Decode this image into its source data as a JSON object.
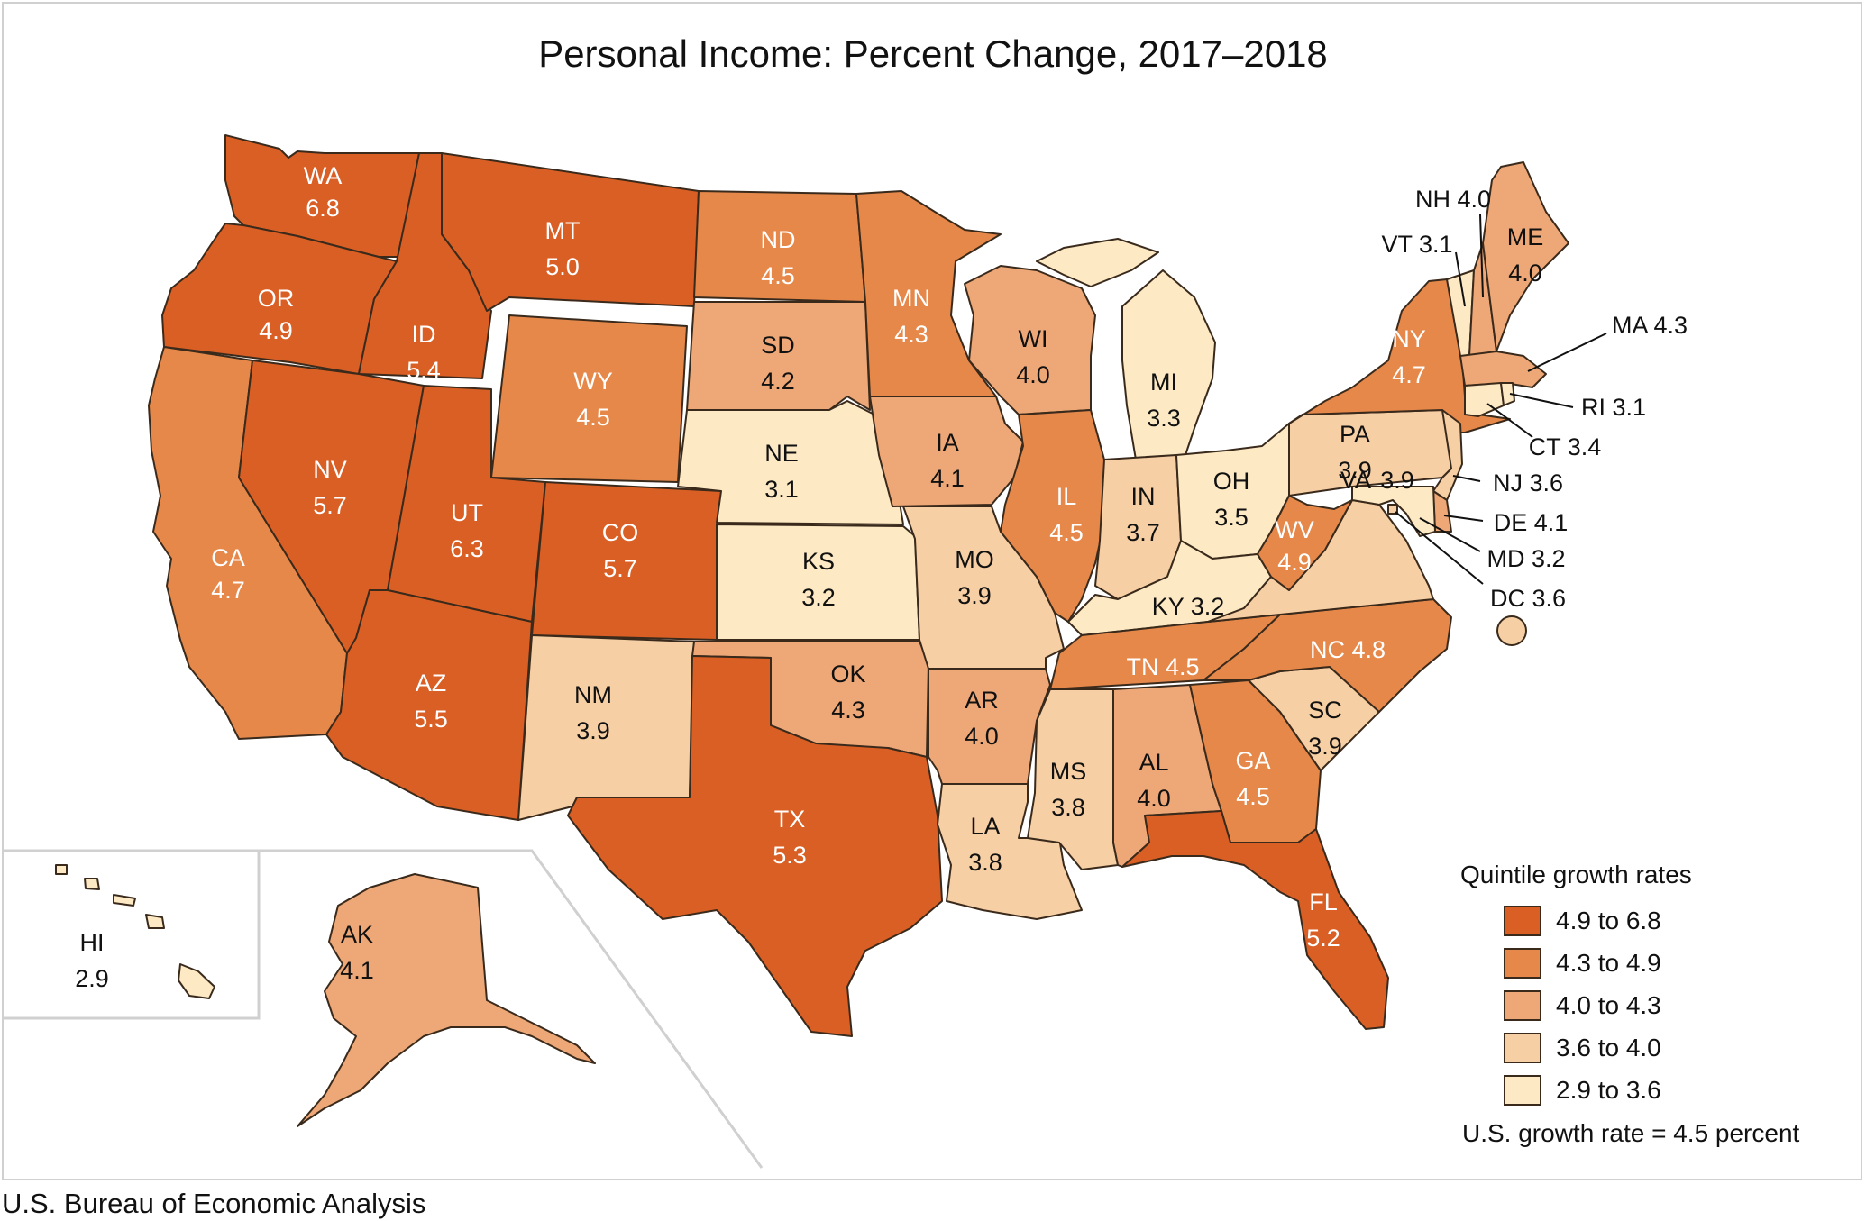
{
  "title": "Personal Income: Percent Change, 2017–2018",
  "source": "U.S. Bureau of Economic Analysis",
  "colors": {
    "q5": "#d95f25",
    "q4": "#e5884a",
    "q3": "#eea877",
    "q2": "#f7cfa4",
    "q1": "#fde9c4",
    "border": "#3a2a1c"
  },
  "legend": {
    "title": "Quintile growth rates",
    "items": [
      {
        "label": "4.9 to 6.8",
        "color": "#d95f25"
      },
      {
        "label": "4.3 to 4.9",
        "color": "#e5884a"
      },
      {
        "label": "4.0 to 4.3",
        "color": "#eea877"
      },
      {
        "label": "3.6 to 4.0",
        "color": "#f7cfa4"
      },
      {
        "label": "2.9 to 3.6",
        "color": "#fde9c4"
      }
    ],
    "us_rate": "U.S. growth rate = 4.5 percent"
  },
  "states": {
    "WA": {
      "abbr": "WA",
      "value": "6.8"
    },
    "OR": {
      "abbr": "OR",
      "value": "4.9"
    },
    "CA": {
      "abbr": "CA",
      "value": "4.7"
    },
    "ID": {
      "abbr": "ID",
      "value": "5.4"
    },
    "NV": {
      "abbr": "NV",
      "value": "5.7"
    },
    "MT": {
      "abbr": "MT",
      "value": "5.0"
    },
    "WY": {
      "abbr": "WY",
      "value": "4.5"
    },
    "UT": {
      "abbr": "UT",
      "value": "6.3"
    },
    "CO": {
      "abbr": "CO",
      "value": "5.7"
    },
    "AZ": {
      "abbr": "AZ",
      "value": "5.5"
    },
    "NM": {
      "abbr": "NM",
      "value": "3.9"
    },
    "ND": {
      "abbr": "ND",
      "value": "4.5"
    },
    "SD": {
      "abbr": "SD",
      "value": "4.2"
    },
    "NE": {
      "abbr": "NE",
      "value": "3.1"
    },
    "KS": {
      "abbr": "KS",
      "value": "3.2"
    },
    "OK": {
      "abbr": "OK",
      "value": "4.3"
    },
    "TX": {
      "abbr": "TX",
      "value": "5.3"
    },
    "MN": {
      "abbr": "MN",
      "value": "4.3"
    },
    "IA": {
      "abbr": "IA",
      "value": "4.1"
    },
    "MO": {
      "abbr": "MO",
      "value": "3.9"
    },
    "AR": {
      "abbr": "AR",
      "value": "4.0"
    },
    "LA": {
      "abbr": "LA",
      "value": "3.8"
    },
    "WI": {
      "abbr": "WI",
      "value": "4.0"
    },
    "IL": {
      "abbr": "IL",
      "value": "4.5"
    },
    "MI": {
      "abbr": "MI",
      "value": "3.3"
    },
    "IN": {
      "abbr": "IN",
      "value": "3.7"
    },
    "OH": {
      "abbr": "OH",
      "value": "3.5"
    },
    "KY": {
      "abbr": "KY",
      "value": "3.2"
    },
    "TN": {
      "abbr": "TN",
      "value": "4.5"
    },
    "MS": {
      "abbr": "MS",
      "value": "3.8"
    },
    "AL": {
      "abbr": "AL",
      "value": "4.0"
    },
    "GA": {
      "abbr": "GA",
      "value": "4.5"
    },
    "FL": {
      "abbr": "FL",
      "value": "5.2"
    },
    "SC": {
      "abbr": "SC",
      "value": "3.9"
    },
    "NC": {
      "abbr": "NC",
      "value": "4.8"
    },
    "VA": {
      "abbr": "VA",
      "value": "3.9"
    },
    "WV": {
      "abbr": "WV",
      "value": "4.9"
    },
    "PA": {
      "abbr": "PA",
      "value": "3.9"
    },
    "NY": {
      "abbr": "NY",
      "value": "4.7"
    },
    "ME": {
      "abbr": "ME",
      "value": "4.0"
    },
    "NH": {
      "abbr": "NH",
      "value": "4.0"
    },
    "VT": {
      "abbr": "VT",
      "value": "3.1"
    },
    "MA": {
      "abbr": "MA",
      "value": "4.3"
    },
    "RI": {
      "abbr": "RI",
      "value": "3.1"
    },
    "CT": {
      "abbr": "CT",
      "value": "3.4"
    },
    "NJ": {
      "abbr": "NJ",
      "value": "3.6"
    },
    "DE": {
      "abbr": "DE",
      "value": "4.1"
    },
    "MD": {
      "abbr": "MD",
      "value": "3.2"
    },
    "DC": {
      "abbr": "DC",
      "value": "3.6"
    },
    "AK": {
      "abbr": "AK",
      "value": "4.1"
    },
    "HI": {
      "abbr": "HI",
      "value": "2.9"
    }
  }
}
